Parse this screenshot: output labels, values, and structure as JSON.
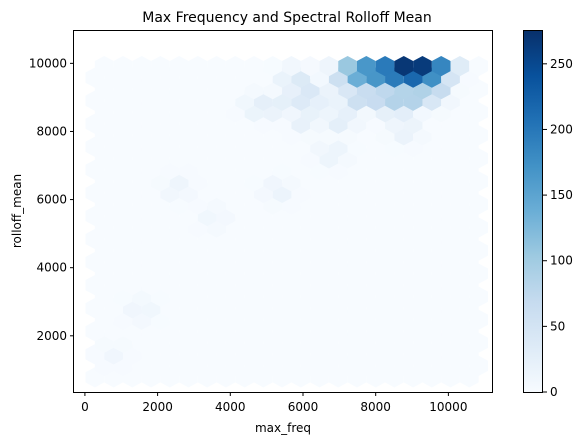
{
  "chart_data": {
    "type": "heatmap",
    "subtype": "hexbin",
    "title": "Max Frequency and Spectral Rolloff Mean",
    "xlabel": "max_freq",
    "ylabel": "rolloff_mean",
    "xlim": [
      -300,
      11200
    ],
    "ylim": [
      350,
      10950
    ],
    "xticks": [
      0,
      2000,
      4000,
      6000,
      8000,
      10000
    ],
    "yticks": [
      2000,
      4000,
      6000,
      8000,
      10000
    ],
    "xtick_labels": [
      "0",
      "2000",
      "4000",
      "6000",
      "8000",
      "10000"
    ],
    "ytick_labels": [
      "2000",
      "4000",
      "6000",
      "8000",
      "10000"
    ],
    "colormap": "Blues",
    "colorbar": {
      "min": 0,
      "max": 275,
      "ticks": [
        0,
        50,
        100,
        150,
        200,
        250
      ],
      "tick_labels": [
        "0",
        "50",
        "100",
        "150",
        "200",
        "250"
      ]
    },
    "grid": false,
    "hex_grid": {
      "x_start": 275,
      "x_step": 515,
      "y_start": 780,
      "y_step": 677,
      "cols": 21,
      "rows": 14
    },
    "hotspots": [
      {
        "x": 8800,
        "y": 9900,
        "count": 270
      },
      {
        "x": 9300,
        "y": 9900,
        "count": 265
      },
      {
        "x": 9050,
        "y": 9500,
        "count": 230
      },
      {
        "x": 8550,
        "y": 9500,
        "count": 210
      },
      {
        "x": 8300,
        "y": 9900,
        "count": 200
      },
      {
        "x": 9550,
        "y": 9500,
        "count": 185
      },
      {
        "x": 9800,
        "y": 9900,
        "count": 185
      },
      {
        "x": 8050,
        "y": 9500,
        "count": 180
      },
      {
        "x": 7800,
        "y": 9900,
        "count": 170
      },
      {
        "x": 7550,
        "y": 9500,
        "count": 150
      },
      {
        "x": 9300,
        "y": 10250,
        "count": 140
      },
      {
        "x": 8800,
        "y": 10250,
        "count": 130
      },
      {
        "x": 9050,
        "y": 9100,
        "count": 120
      },
      {
        "x": 8550,
        "y": 9100,
        "count": 120
      },
      {
        "x": 7300,
        "y": 9900,
        "count": 110
      },
      {
        "x": 9800,
        "y": 10250,
        "count": 100
      },
      {
        "x": 8050,
        "y": 9100,
        "count": 95
      },
      {
        "x": 8300,
        "y": 10250,
        "count": 95
      },
      {
        "x": 7550,
        "y": 9100,
        "count": 85
      },
      {
        "x": 7800,
        "y": 10250,
        "count": 75
      },
      {
        "x": 7050,
        "y": 9500,
        "count": 65
      },
      {
        "x": 9550,
        "y": 9100,
        "count": 60
      },
      {
        "x": 6050,
        "y": 9100,
        "count": 55
      },
      {
        "x": 5800,
        "y": 9500,
        "count": 45
      },
      {
        "x": 8800,
        "y": 8800,
        "count": 45
      },
      {
        "x": 7300,
        "y": 8800,
        "count": 40
      },
      {
        "x": 8300,
        "y": 8800,
        "count": 40
      },
      {
        "x": 4800,
        "y": 8800,
        "count": 30
      },
      {
        "x": 6300,
        "y": 8800,
        "count": 30
      },
      {
        "x": 5300,
        "y": 8800,
        "count": 30
      },
      {
        "x": 7050,
        "y": 8400,
        "count": 35
      },
      {
        "x": 6050,
        "y": 8400,
        "count": 30
      },
      {
        "x": 8800,
        "y": 8100,
        "count": 25
      },
      {
        "x": 6800,
        "y": 7400,
        "count": 20
      },
      {
        "x": 5300,
        "y": 6300,
        "count": 18
      },
      {
        "x": 2550,
        "y": 6400,
        "count": 15
      },
      {
        "x": 3550,
        "y": 5500,
        "count": 12
      },
      {
        "x": 1550,
        "y": 2800,
        "count": 15
      },
      {
        "x": 800,
        "y": 1500,
        "count": 10
      }
    ]
  }
}
